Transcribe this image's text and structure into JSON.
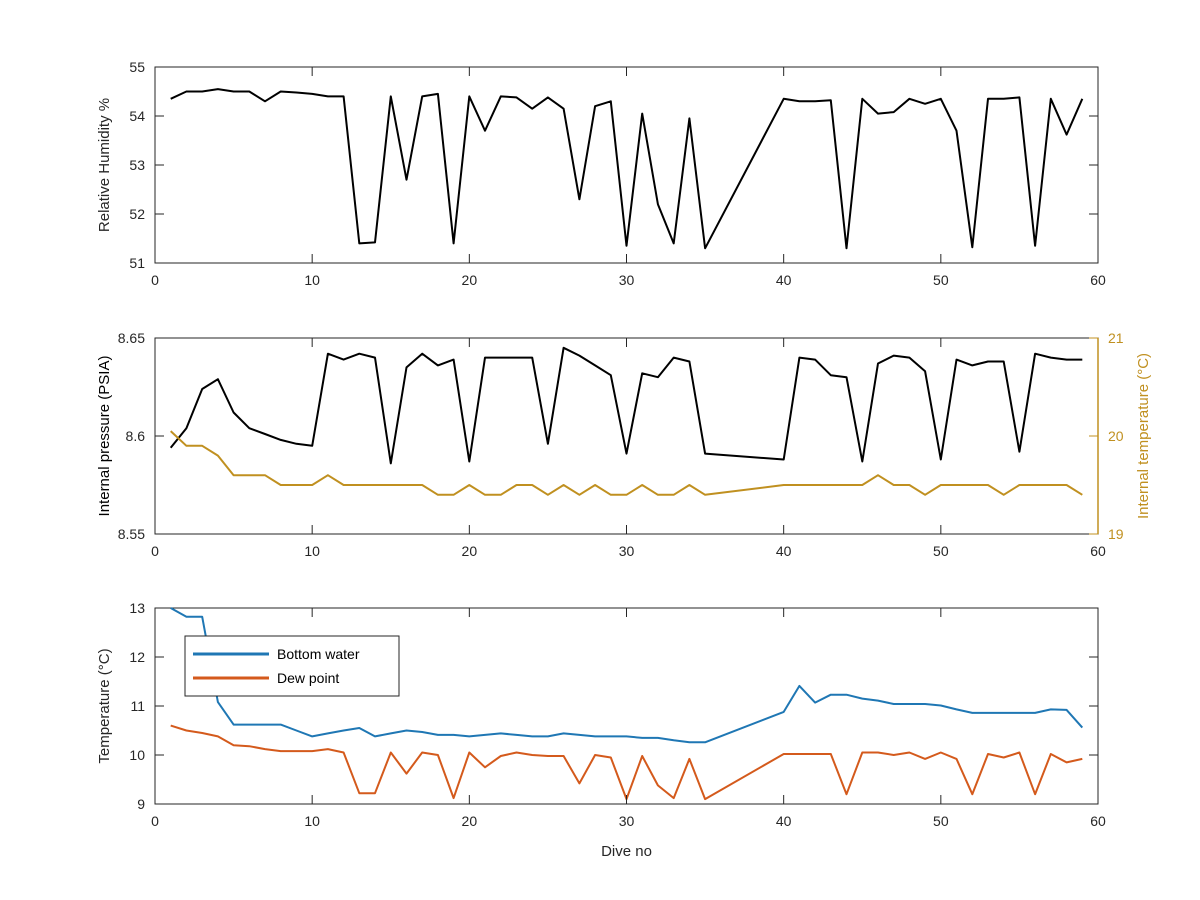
{
  "figure": {
    "background": "#ffffff",
    "axis_color": "#262626"
  },
  "chart_data": [
    {
      "type": "line",
      "panel": "top",
      "title": "",
      "xlabel": "",
      "ylabel": "Relative Humidity %",
      "xlim": [
        0,
        60
      ],
      "ylim": [
        51,
        55
      ],
      "xticks": [
        0,
        10,
        20,
        30,
        40,
        50,
        60
      ],
      "yticks": [
        51,
        52,
        53,
        54,
        55
      ],
      "grid": false,
      "series": [
        {
          "color": "#000000",
          "x": [
            1,
            2,
            3,
            4,
            5,
            6,
            7,
            8,
            9,
            10,
            11,
            12,
            13,
            14,
            15,
            16,
            17,
            18,
            19,
            20,
            21,
            22,
            23,
            24,
            25,
            26,
            27,
            28,
            29,
            30,
            31,
            32,
            33,
            34,
            35,
            40,
            41,
            42,
            43,
            44,
            45,
            46,
            47,
            48,
            49,
            50,
            51,
            52,
            53,
            54,
            55,
            56,
            57,
            58,
            59
          ],
          "y": [
            54.35,
            54.5,
            54.5,
            54.55,
            54.5,
            54.5,
            54.3,
            54.5,
            54.48,
            54.45,
            54.4,
            54.4,
            51.4,
            51.42,
            54.4,
            52.7,
            54.4,
            54.45,
            51.4,
            54.4,
            53.7,
            54.4,
            54.38,
            54.15,
            54.38,
            54.15,
            52.3,
            54.2,
            54.3,
            51.35,
            54.05,
            52.2,
            51.4,
            53.95,
            51.3,
            54.35,
            54.3,
            54.3,
            54.32,
            51.3,
            54.35,
            54.05,
            54.08,
            54.35,
            54.25,
            54.35,
            53.7,
            51.32,
            54.35,
            54.35,
            54.38,
            51.35,
            54.35,
            53.62,
            54.35
          ]
        }
      ]
    },
    {
      "type": "line",
      "panel": "middle",
      "title": "",
      "xlabel": "",
      "ylabel": "Internal pressure (PSIA)",
      "ylabel_right": "Internal temperature (°C)",
      "xlim": [
        0,
        60
      ],
      "ylim": [
        8.55,
        8.65
      ],
      "ylim_right": [
        19,
        21
      ],
      "xticks": [
        0,
        10,
        20,
        30,
        40,
        50,
        60
      ],
      "yticks": [
        8.55,
        8.6,
        8.65
      ],
      "yticks_right": [
        19,
        20,
        21
      ],
      "grid": false,
      "right_axis_color": "#c09020",
      "series": [
        {
          "axis": "left",
          "color": "#000000",
          "x": [
            1,
            2,
            3,
            4,
            5,
            6,
            7,
            8,
            9,
            10,
            11,
            12,
            13,
            14,
            15,
            16,
            17,
            18,
            19,
            20,
            21,
            22,
            23,
            24,
            25,
            26,
            27,
            28,
            29,
            30,
            31,
            32,
            33,
            34,
            35,
            40,
            41,
            42,
            43,
            44,
            45,
            46,
            47,
            48,
            49,
            50,
            51,
            52,
            53,
            54,
            55,
            56,
            57,
            58,
            59
          ],
          "y": [
            8.594,
            8.604,
            8.624,
            8.629,
            8.612,
            8.604,
            8.601,
            8.598,
            8.596,
            8.595,
            8.642,
            8.639,
            8.642,
            8.64,
            8.586,
            8.635,
            8.642,
            8.636,
            8.639,
            8.587,
            8.64,
            8.64,
            8.64,
            8.64,
            8.596,
            8.645,
            8.641,
            8.636,
            8.631,
            8.591,
            8.632,
            8.63,
            8.64,
            8.638,
            8.591,
            8.588,
            8.64,
            8.639,
            8.631,
            8.63,
            8.587,
            8.637,
            8.641,
            8.64,
            8.633,
            8.588,
            8.639,
            8.636,
            8.638,
            8.638,
            8.592,
            8.642,
            8.64,
            8.639,
            8.639
          ]
        },
        {
          "axis": "right",
          "color": "#c09020",
          "x": [
            1,
            2,
            3,
            4,
            5,
            6,
            7,
            8,
            9,
            10,
            11,
            12,
            13,
            14,
            15,
            16,
            17,
            18,
            19,
            20,
            21,
            22,
            23,
            24,
            25,
            26,
            27,
            28,
            29,
            30,
            31,
            32,
            33,
            34,
            35,
            40,
            41,
            42,
            43,
            44,
            45,
            46,
            47,
            48,
            49,
            50,
            51,
            52,
            53,
            54,
            55,
            56,
            57,
            58,
            59
          ],
          "y": [
            20.05,
            19.9,
            19.9,
            19.8,
            19.6,
            19.6,
            19.6,
            19.5,
            19.5,
            19.5,
            19.6,
            19.5,
            19.5,
            19.5,
            19.5,
            19.5,
            19.5,
            19.4,
            19.4,
            19.5,
            19.4,
            19.4,
            19.5,
            19.5,
            19.4,
            19.5,
            19.4,
            19.5,
            19.4,
            19.4,
            19.5,
            19.4,
            19.4,
            19.5,
            19.4,
            19.5,
            19.5,
            19.5,
            19.5,
            19.5,
            19.5,
            19.6,
            19.5,
            19.5,
            19.4,
            19.5,
            19.5,
            19.5,
            19.5,
            19.4,
            19.5,
            19.5,
            19.5,
            19.5,
            19.4
          ]
        }
      ]
    },
    {
      "type": "line",
      "panel": "bottom",
      "title": "",
      "xlabel": "Dive no",
      "ylabel": "Temperature (°C)",
      "xlim": [
        0,
        60
      ],
      "ylim": [
        9,
        13
      ],
      "xticks": [
        0,
        10,
        20,
        30,
        40,
        50,
        60
      ],
      "yticks": [
        9,
        10,
        11,
        12,
        13
      ],
      "grid": false,
      "legend": "top-left",
      "series": [
        {
          "name": "Bottom water",
          "color": "#1f77b4",
          "x": [
            1,
            2,
            3,
            4,
            5,
            6,
            7,
            8,
            9,
            10,
            11,
            12,
            13,
            14,
            15,
            16,
            17,
            18,
            19,
            20,
            21,
            22,
            23,
            24,
            25,
            26,
            27,
            28,
            29,
            30,
            31,
            32,
            33,
            34,
            35,
            40,
            41,
            42,
            43,
            44,
            45,
            46,
            47,
            48,
            49,
            50,
            51,
            52,
            53,
            54,
            55,
            56,
            57,
            58,
            59
          ],
          "y": [
            13.0,
            12.82,
            12.82,
            11.08,
            10.62,
            10.62,
            10.62,
            10.62,
            10.5,
            10.38,
            10.44,
            10.5,
            10.55,
            10.38,
            10.44,
            10.5,
            10.47,
            10.41,
            10.41,
            10.38,
            10.41,
            10.44,
            10.41,
            10.38,
            10.38,
            10.44,
            10.41,
            10.38,
            10.38,
            10.38,
            10.35,
            10.35,
            10.3,
            10.26,
            10.26,
            10.88,
            11.41,
            11.07,
            11.23,
            11.23,
            11.15,
            11.11,
            11.04,
            11.04,
            11.04,
            11.01,
            10.93,
            10.86,
            10.86,
            10.86,
            10.86,
            10.86,
            10.93,
            10.92,
            10.56
          ]
        },
        {
          "name": "Dew point",
          "color": "#d45a1c",
          "x": [
            1,
            2,
            3,
            4,
            5,
            6,
            7,
            8,
            9,
            10,
            11,
            12,
            13,
            14,
            15,
            16,
            17,
            18,
            19,
            20,
            21,
            22,
            23,
            24,
            25,
            26,
            27,
            28,
            29,
            30,
            31,
            32,
            33,
            34,
            35,
            40,
            41,
            42,
            43,
            44,
            45,
            46,
            47,
            48,
            49,
            50,
            51,
            52,
            53,
            54,
            55,
            56,
            57,
            58,
            59
          ],
          "y": [
            10.6,
            10.5,
            10.45,
            10.38,
            10.2,
            10.18,
            10.12,
            10.08,
            10.08,
            10.08,
            10.12,
            10.05,
            9.22,
            9.22,
            10.05,
            9.62,
            10.05,
            10.0,
            9.12,
            10.05,
            9.75,
            9.98,
            10.05,
            10.0,
            9.98,
            9.98,
            9.42,
            10.0,
            9.95,
            9.1,
            9.98,
            9.38,
            9.12,
            9.92,
            9.1,
            10.02,
            10.02,
            10.02,
            10.02,
            9.2,
            10.05,
            10.05,
            10.0,
            10.05,
            9.92,
            10.05,
            9.92,
            9.2,
            10.02,
            9.95,
            10.05,
            9.2,
            10.02,
            9.85,
            9.92
          ]
        }
      ]
    }
  ]
}
